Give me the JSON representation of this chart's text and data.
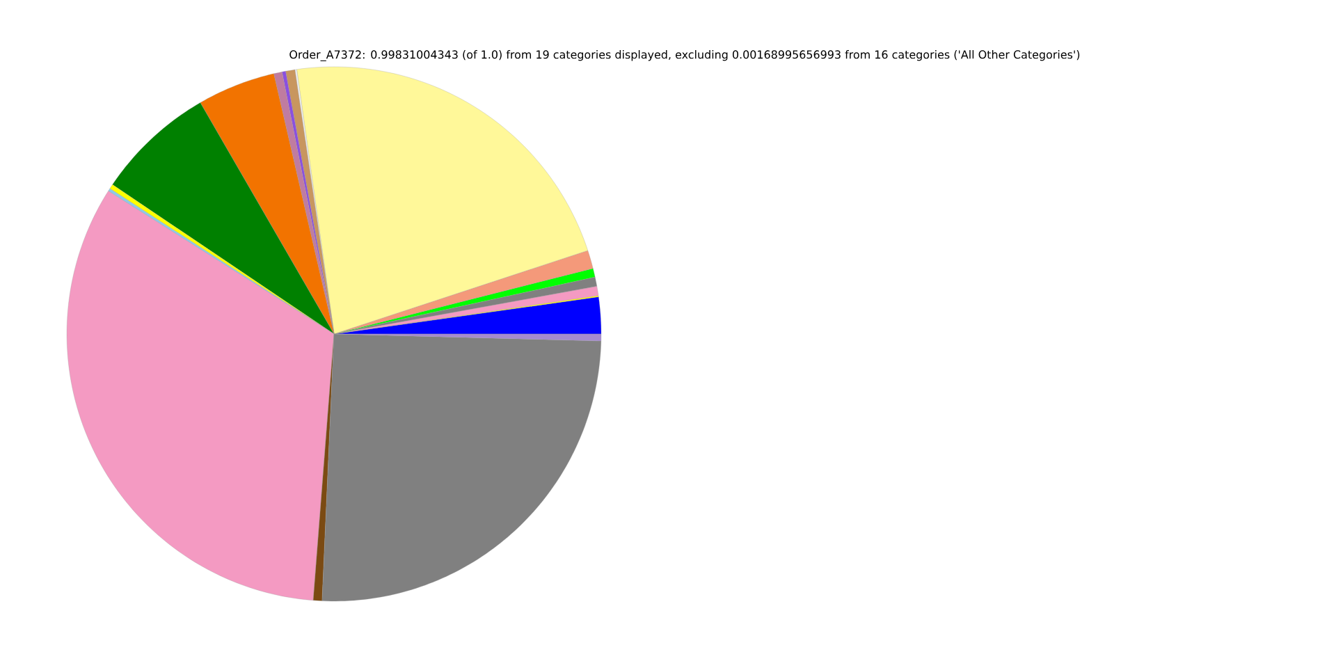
{
  "chart_data": {
    "type": "pie",
    "title": "Order_A7372: 0.99831004343 (of 1.0) from 19 categories displayed, excluding 0.00168995656993 from 16 categories ('All Other Categories')",
    "categories": [
      null,
      null,
      null,
      null,
      null,
      null,
      null,
      null,
      null,
      null,
      null,
      null,
      null,
      null,
      null,
      null,
      null,
      null,
      null
    ],
    "values": [
      2.22,
      0.08,
      0.56,
      0.56,
      0.53,
      1.11,
      22.17,
      0.11,
      0.56,
      0.22,
      0.5,
      4.72,
      7.22,
      0.28,
      0.17,
      32.75,
      0.53,
      25.29,
      0.42
    ],
    "colors": [
      "#0000ff",
      "#ffff00",
      "#f49ac2",
      "#808080",
      "#00ff00",
      "#f4997a",
      "#fff899",
      "#f0f0f0",
      "#c8965f",
      "#8b4fe0",
      "#c07ca0",
      "#f27300",
      "#008000",
      "#ffff00",
      "#8ecae6",
      "#f49ac2",
      "#7b4a12",
      "#808080",
      "#a58ad0"
    ]
  }
}
